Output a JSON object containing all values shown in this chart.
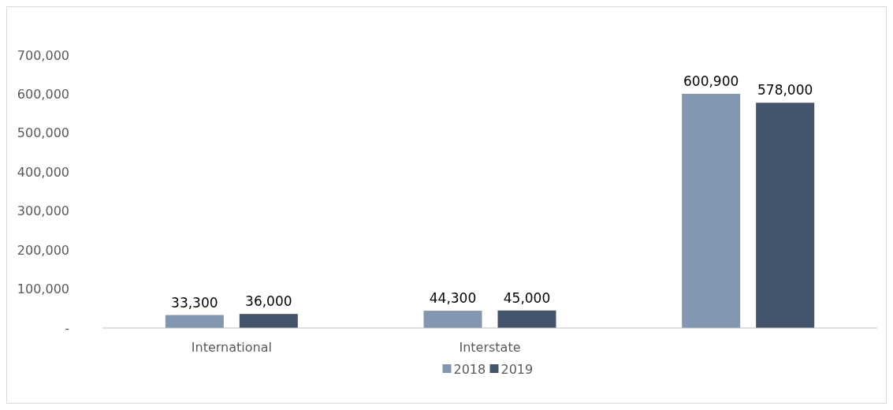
{
  "chart_data": {
    "type": "bar",
    "categories": [
      "International",
      "Interstate",
      null
    ],
    "series": [
      {
        "name": "2018",
        "color": "#8497b0",
        "values": [
          33300,
          44300,
          600900
        ],
        "value_labels": [
          "33,300",
          "44,300",
          "600,900"
        ]
      },
      {
        "name": "2019",
        "color": "#44546a",
        "values": [
          36000,
          45000,
          578000
        ],
        "value_labels": [
          "36,000",
          "45,000",
          "578,000"
        ]
      }
    ],
    "ylim": [
      0,
      700000
    ],
    "yticks": [
      {
        "value": 0,
        "label": "-"
      },
      {
        "value": 100000,
        "label": "100,000"
      },
      {
        "value": 200000,
        "label": "200,000"
      },
      {
        "value": 300000,
        "label": "300,000"
      },
      {
        "value": 400000,
        "label": "400,000"
      },
      {
        "value": 500000,
        "label": "500,000"
      },
      {
        "value": 600000,
        "label": "600,000"
      },
      {
        "value": 700000,
        "label": "700,000"
      }
    ],
    "grid": false,
    "legend": "bottom"
  }
}
